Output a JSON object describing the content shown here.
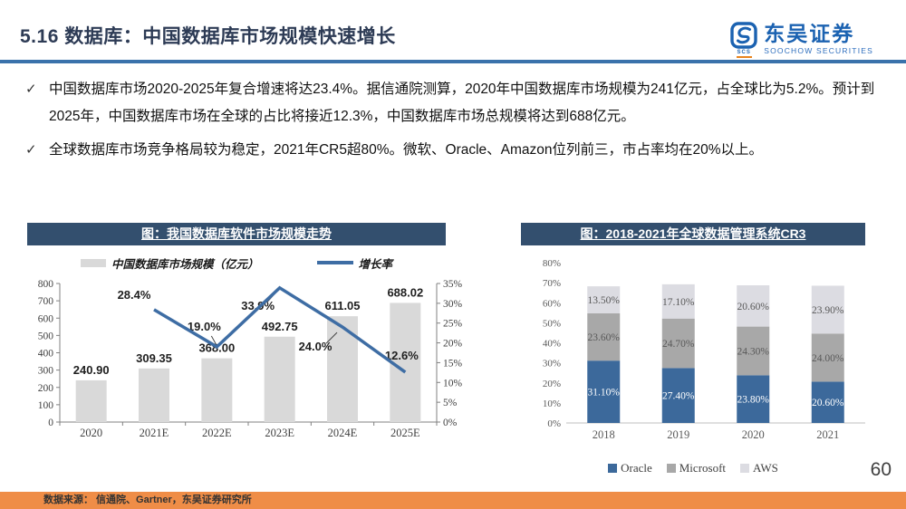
{
  "header": {
    "title": "5.16 数据库：中国数据库市场规模快速增长",
    "logo": {
      "cn": "东吴证券",
      "en": "SOOCHOW SECURITIES",
      "abbr": "SCS"
    }
  },
  "bullets": [
    {
      "marker": "✓",
      "text": "中国数据库市场2020-2025年复合增速将达23.4%。据信通院测算，2020年中国数据库市场规模为241亿元，占全球比为5.2%。预计到2025年，中国数据库市场在全球的占比将接近12.3%，中国数据库市场总规模将达到688亿元。"
    },
    {
      "marker": "✓",
      "text": "全球数据库市场竞争格局较为稳定，2021年CR5超80%。微软、Oracle、Amazon位列前三，市占率均在20%以上。"
    }
  ],
  "chart_data": [
    {
      "type": "bar",
      "subtype": "bar-line-combo",
      "title": "图：我国数据库软件市场规模走势",
      "categories": [
        "2020",
        "2021E",
        "2022E",
        "2023E",
        "2024E",
        "2025E"
      ],
      "bar_series": {
        "name": "中国数据库市场规模（亿元）",
        "color": "#d9d9d9",
        "values": [
          240.9,
          309.35,
          368.0,
          492.75,
          611.05,
          688.02
        ]
      },
      "line_series": {
        "name": "增长率",
        "color": "#3e6da4",
        "values": [
          null,
          28.4,
          19.0,
          33.9,
          24.0,
          12.6
        ]
      },
      "y_left": {
        "min": 0,
        "max": 800,
        "step": 100,
        "suffix": ""
      },
      "y_right": {
        "min": 0,
        "max": 35,
        "step": 5,
        "suffix": "%"
      },
      "legend_position": "top",
      "grid": false
    },
    {
      "type": "bar",
      "subtype": "stacked-bar",
      "title": "图：2018-2021年全球数据管理系统CR3",
      "categories": [
        "2018",
        "2019",
        "2020",
        "2021"
      ],
      "series": [
        {
          "name": "Oracle",
          "color": "#3c699b",
          "label_color": "#ffffff",
          "values": [
            31.1,
            27.4,
            23.8,
            20.6
          ]
        },
        {
          "name": "Microsoft",
          "color": "#a8a8a8",
          "label_color": "#595959",
          "values": [
            23.6,
            24.7,
            24.3,
            24.0
          ]
        },
        {
          "name": "AWS",
          "color": "#dcdce2",
          "label_color": "#595959",
          "values": [
            13.5,
            17.1,
            20.6,
            23.9
          ]
        }
      ],
      "y_axis": {
        "min": 0,
        "max": 80,
        "step": 10,
        "suffix": "%"
      },
      "legend_position": "bottom",
      "grid": false
    }
  ],
  "footer": {
    "page_number": "60",
    "source": "数据来源： 信通院、Gartner，东吴证券研究所"
  }
}
